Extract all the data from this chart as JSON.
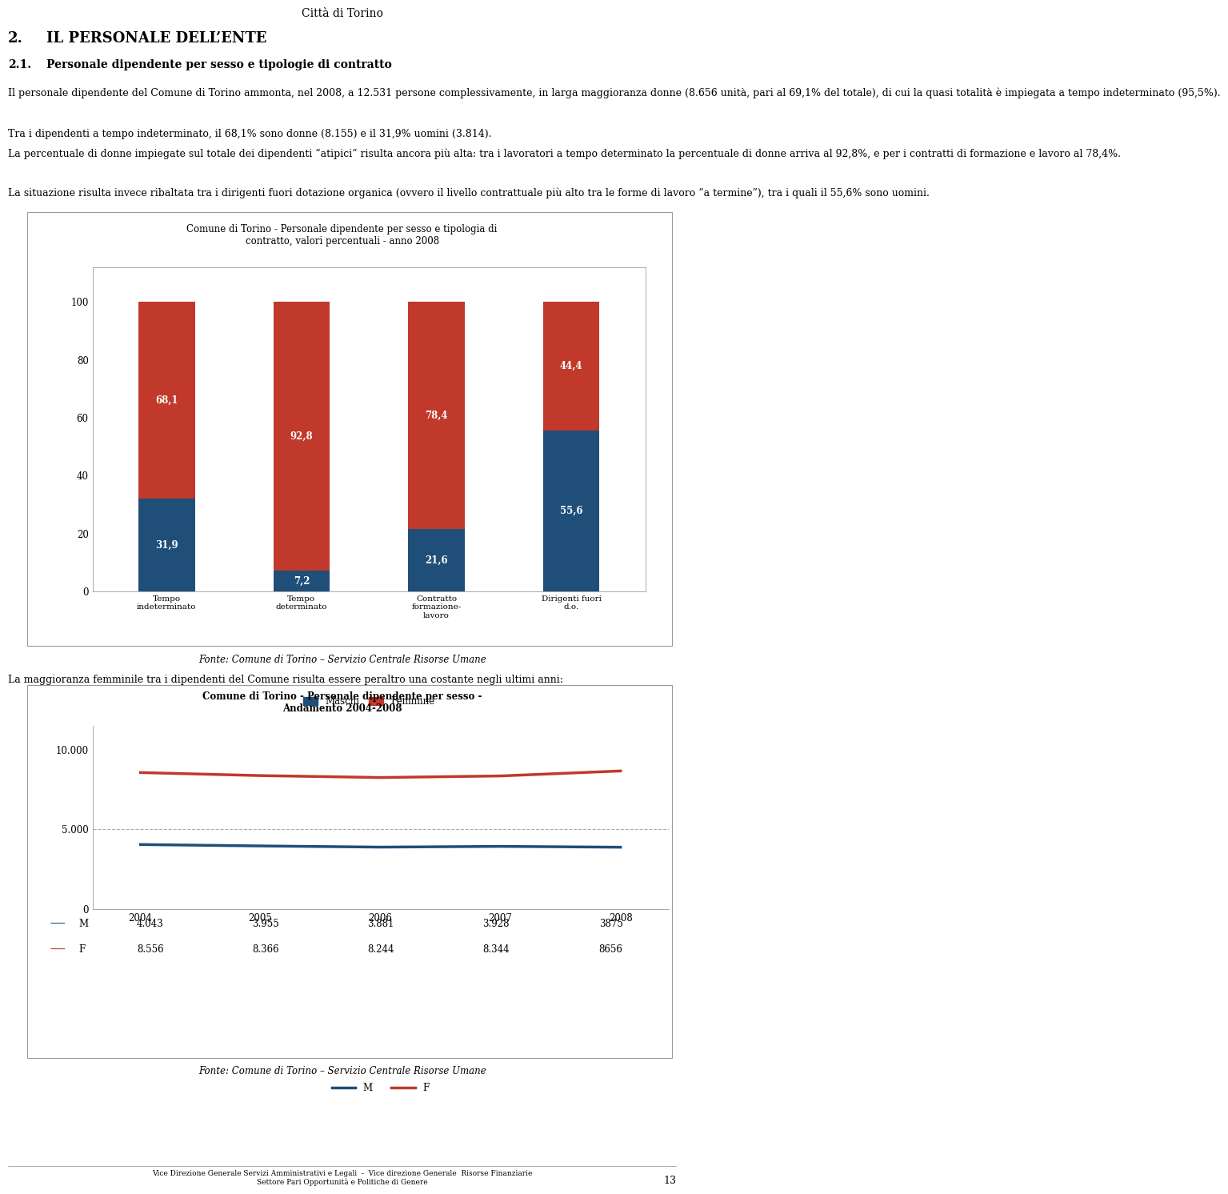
{
  "page_title": "Cᴛᴛà ᴅᴛ Tᴏʀᴛɴᴏ",
  "section_number": "2.",
  "section_title": "IL PERSONALE DELL’ENTE",
  "subsection_number": "2.1.",
  "subsection_title": "Personale dipendente per sesso e tipologie di contratto",
  "body_text_1": "Il personale dipendente del Comune di Torino ammonta, nel 2008, a 12.531 persone complessivamente, in larga maggioranza donne (8.656 unità, pari al 69,1% del totale), di cui la quasi totalità è impiegata a tempo indeterminato (95,5%).",
  "body_text_2": "Tra i dipendenti a tempo indeterminato, il 68,1% sono donne (8.155) e il 31,9% uomini (3.814).",
  "body_text_3": "La percentuale di donne impiegate sul totale dei dipendenti “atipici” risulta ancora più alta: tra i lavoratori a tempo determinato la percentuale di donne arriva al 92,8%, e per i contratti di formazione e lavoro al 78,4%.",
  "body_text_4": "La situazione risulta invece ribaltata tra i dirigenti fuori dotazione organica (ovvero il livello contrattuale più alto tra le forme di lavoro “a termine”), tra i quali il 55,6% sono uomini.",
  "chart1_title_line1": "Comune di Torino - Personale dipendente per sesso e tipologia di",
  "chart1_title_line2": "contratto, valori percentuali - anno 2008",
  "chart1_categories": [
    "Tempo\nindeterminato",
    "Tempo\ndeterminato",
    "Contratto\nformazione-\nlavoro",
    "Dirigenti fuori\nd.o."
  ],
  "chart1_maschi": [
    31.9,
    7.2,
    21.6,
    55.6
  ],
  "chart1_femmine": [
    68.1,
    92.8,
    78.4,
    44.4
  ],
  "chart1_color_maschi": "#1f4e79",
  "chart1_color_femmine": "#c0392b",
  "chart1_yticks": [
    0,
    20,
    40,
    60,
    80,
    100
  ],
  "chart1_legend_maschi": "Maschi",
  "chart1_legend_femmine": "Femmine",
  "fonte1": "Fonte: Comune di Torino – Servizio Centrale Risorse Umane",
  "body_text_5": "La maggioranza femminile tra i dipendenti del Comune risulta essere peraltro una costante negli ultimi anni:",
  "chart2_title_line1": "Comune di Torino - Personale dipendente per sesso -",
  "chart2_title_line2": "Andamento 2004-2008",
  "chart2_years": [
    2004,
    2005,
    2006,
    2007,
    2008
  ],
  "chart2_M": [
    4043,
    3955,
    3881,
    3928,
    3875
  ],
  "chart2_F": [
    8556,
    8366,
    8244,
    8344,
    8656
  ],
  "chart2_color_M": "#1f4e79",
  "chart2_color_F": "#c0392b",
  "chart2_yticks": [
    0,
    5000,
    10000
  ],
  "chart2_ytick_labels": [
    "0",
    "5.000",
    "10.000"
  ],
  "chart2_ylim": [
    0,
    11500
  ],
  "chart2_table_M_label": "M",
  "chart2_table_F_label": "F",
  "chart2_table_M_values": [
    "4.043",
    "3.955",
    "3.881",
    "3.928",
    "3875"
  ],
  "chart2_table_F_values": [
    "8.556",
    "8.366",
    "8.244",
    "8.344",
    "8656"
  ],
  "fonte2": "Fonte: Comune di Torino – Servizio Centrale Risorse Umane",
  "footer_line1": "Vice Direzione Generale Servizi Amministrativi e Legali  -  Vice direzione Generale  Risorse Finanziarie",
  "footer_line2": "Settore Pari Opportunità e Politiche di Genere",
  "page_number": "13",
  "background_color": "#ffffff",
  "text_color": "#000000"
}
